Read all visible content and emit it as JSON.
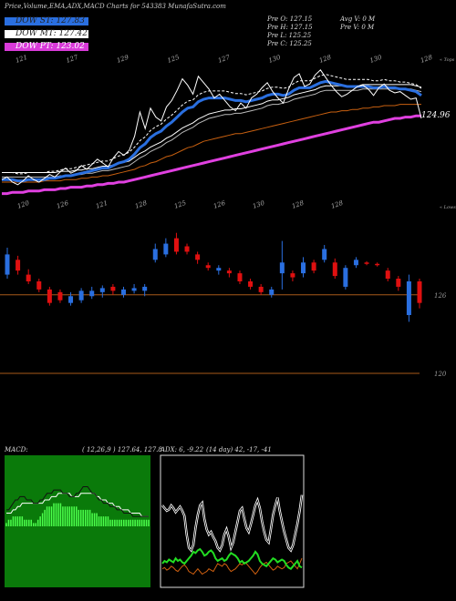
{
  "title": "Price,Volume,EMA,ADX,MACD Charts for 543383 MunafaSutra.com",
  "legend": [
    {
      "label": "DOW ST: 127.83",
      "color": "#2a6fe0",
      "text": "#222"
    },
    {
      "label": "DOW MT: 127.42",
      "color": "#ffffff",
      "text": "#222"
    },
    {
      "label": "DOW PT: 123.02",
      "color": "#d83ad8",
      "text": "#fff"
    }
  ],
  "info": {
    "pre_o": "Pre   O: 127.15",
    "pre_h": "Pre   H: 127.15",
    "pre_l": "Pre   L: 125.25",
    "pre_c": "Pre   C: 125.25",
    "avg_v": "Avg V: 0   M",
    "pre_v": "Pre   V: 0   M"
  },
  "colors": {
    "up": "#2a6fe0",
    "down": "#e01010",
    "macd_bg": "#0a7a0a",
    "pink": "#e040e0",
    "orange": "#c86010",
    "level": "#a85a1a"
  },
  "chart_data": [
    {
      "type": "line",
      "name": "price-ema",
      "top_labels": [
        "121",
        "127",
        "129",
        "125",
        "127",
        "130",
        "128",
        "130",
        "128"
      ],
      "bottom_labels": [
        "120",
        "126",
        "121",
        "128",
        "125",
        "126",
        "130",
        "128",
        "128"
      ],
      "side_top": "« Tops",
      "side_bottom": "« Lows",
      "last_value": "124.96",
      "close": [
        121.2,
        121.4,
        121.0,
        120.8,
        121.1,
        121.5,
        121.2,
        121.0,
        121.3,
        121.6,
        121.4,
        121.8,
        122.1,
        121.7,
        121.9,
        122.3,
        122.0,
        122.4,
        122.8,
        122.5,
        122.2,
        122.9,
        123.4,
        123.1,
        123.5,
        124.6,
        126.5,
        125.2,
        126.8,
        126.1,
        125.8,
        126.9,
        127.4,
        128.2,
        129.1,
        128.6,
        127.9,
        129.3,
        128.8,
        128.3,
        127.6,
        127.9,
        127.4,
        126.9,
        126.6,
        127.2,
        126.8,
        127.6,
        127.9,
        128.4,
        128.8,
        128.1,
        127.6,
        127.2,
        128.3,
        129.2,
        129.5,
        128.5,
        128.7,
        129.4,
        129.8,
        129.2,
        128.6,
        128.1,
        127.7,
        127.9,
        128.2,
        128.5,
        128.6,
        128.3,
        127.8,
        128.4,
        128.7,
        128.2,
        128.0,
        128.1,
        127.8,
        127.5,
        127.6,
        126.0
      ],
      "ema_fast": [
        121.2,
        121.2,
        121.2,
        121.1,
        121.1,
        121.2,
        121.2,
        121.2,
        121.2,
        121.3,
        121.3,
        121.4,
        121.5,
        121.5,
        121.6,
        121.7,
        121.8,
        121.9,
        122.0,
        122.1,
        122.1,
        122.3,
        122.5,
        122.6,
        122.8,
        123.2,
        123.7,
        124.0,
        124.5,
        124.8,
        125.0,
        125.4,
        125.7,
        126.1,
        126.5,
        126.8,
        126.9,
        127.3,
        127.5,
        127.6,
        127.6,
        127.6,
        127.6,
        127.5,
        127.4,
        127.4,
        127.3,
        127.4,
        127.5,
        127.6,
        127.8,
        127.9,
        127.9,
        127.8,
        127.9,
        128.2,
        128.4,
        128.4,
        128.4,
        128.6,
        128.8,
        128.9,
        128.8,
        128.7,
        128.6,
        128.5,
        128.5,
        128.5,
        128.5,
        128.5,
        128.4,
        128.4,
        128.5,
        128.4,
        128.4,
        128.3,
        128.3,
        128.2,
        128.1,
        127.8
      ],
      "ema_mid": [
        121.4,
        121.4,
        121.4,
        121.4,
        121.4,
        121.4,
        121.4,
        121.4,
        121.4,
        121.4,
        121.4,
        121.5,
        121.5,
        121.5,
        121.6,
        121.6,
        121.7,
        121.7,
        121.8,
        121.9,
        121.9,
        122.0,
        122.1,
        122.2,
        122.3,
        122.6,
        122.9,
        123.1,
        123.4,
        123.6,
        123.8,
        124.1,
        124.3,
        124.6,
        124.9,
        125.1,
        125.3,
        125.6,
        125.8,
        126.0,
        126.1,
        126.2,
        126.3,
        126.3,
        126.4,
        126.4,
        126.5,
        126.6,
        126.7,
        126.8,
        127.0,
        127.1,
        127.1,
        127.2,
        127.3,
        127.5,
        127.6,
        127.7,
        127.8,
        127.9,
        128.1,
        128.2,
        128.2,
        128.2,
        128.2,
        128.2,
        128.2,
        128.2,
        128.3,
        128.3,
        128.3,
        128.3,
        128.3,
        128.3,
        128.3,
        128.3,
        128.3,
        128.3,
        128.2,
        128.1
      ],
      "ema_slow": [
        121.0,
        121.0,
        121.0,
        121.0,
        121.0,
        121.0,
        121.0,
        121.0,
        121.1,
        121.1,
        121.1,
        121.1,
        121.2,
        121.2,
        121.2,
        121.3,
        121.3,
        121.4,
        121.4,
        121.5,
        121.5,
        121.6,
        121.7,
        121.8,
        121.9,
        122.0,
        122.2,
        122.3,
        122.5,
        122.6,
        122.8,
        123.0,
        123.1,
        123.3,
        123.5,
        123.7,
        123.8,
        124.0,
        124.2,
        124.3,
        124.4,
        124.5,
        124.6,
        124.7,
        124.8,
        124.8,
        124.9,
        125.0,
        125.1,
        125.2,
        125.3,
        125.4,
        125.5,
        125.6,
        125.7,
        125.8,
        125.9,
        126.0,
        126.1,
        126.2,
        126.3,
        126.4,
        126.5,
        126.5,
        126.6,
        126.6,
        126.7,
        126.7,
        126.8,
        126.8,
        126.9,
        126.9,
        127.0,
        127.0,
        127.0,
        127.1,
        127.1,
        127.1,
        127.1,
        127.1
      ],
      "ema_long": [
        120.1,
        120.1,
        120.2,
        120.2,
        120.2,
        120.3,
        120.3,
        120.3,
        120.4,
        120.4,
        120.4,
        120.5,
        120.5,
        120.6,
        120.6,
        120.6,
        120.7,
        120.7,
        120.8,
        120.8,
        120.9,
        120.9,
        121.0,
        121.0,
        121.1,
        121.2,
        121.3,
        121.4,
        121.5,
        121.6,
        121.7,
        121.8,
        121.9,
        122.0,
        122.1,
        122.2,
        122.3,
        122.4,
        122.5,
        122.6,
        122.7,
        122.8,
        122.9,
        123.0,
        123.1,
        123.2,
        123.3,
        123.4,
        123.5,
        123.6,
        123.7,
        123.8,
        123.9,
        124.0,
        124.1,
        124.2,
        124.3,
        124.4,
        124.5,
        124.6,
        124.7,
        124.8,
        124.9,
        125.0,
        125.1,
        125.2,
        125.3,
        125.4,
        125.5,
        125.6,
        125.7,
        125.7,
        125.8,
        125.9,
        126.0,
        126.0,
        126.1,
        126.1,
        126.2,
        126.2
      ],
      "ylim": [
        118.5,
        131.0
      ]
    },
    {
      "type": "bar",
      "name": "candles",
      "level_label": "126",
      "lower_label": "120",
      "candles": [
        {
          "o": 127.5,
          "c": 129.0,
          "h": 129.5,
          "l": 127.2
        },
        {
          "o": 128.6,
          "c": 127.8,
          "h": 128.9,
          "l": 127.5
        },
        {
          "o": 127.5,
          "c": 127.0,
          "h": 127.9,
          "l": 126.8
        },
        {
          "o": 127.0,
          "c": 126.4,
          "h": 127.2,
          "l": 126.2
        },
        {
          "o": 126.4,
          "c": 125.4,
          "h": 126.6,
          "l": 125.2
        },
        {
          "o": 126.2,
          "c": 125.6,
          "h": 126.4,
          "l": 125.4
        },
        {
          "o": 125.4,
          "c": 125.9,
          "h": 126.2,
          "l": 125.2
        },
        {
          "o": 125.6,
          "c": 126.3,
          "h": 126.5,
          "l": 125.4
        },
        {
          "o": 125.9,
          "c": 126.3,
          "h": 126.6,
          "l": 125.7
        },
        {
          "o": 126.2,
          "c": 126.5,
          "h": 126.7,
          "l": 125.8
        },
        {
          "o": 126.6,
          "c": 126.3,
          "h": 126.8,
          "l": 126.0
        },
        {
          "o": 126.0,
          "c": 126.4,
          "h": 126.6,
          "l": 125.8
        },
        {
          "o": 126.3,
          "c": 126.5,
          "h": 126.8,
          "l": 126.1
        },
        {
          "o": 126.3,
          "c": 126.6,
          "h": 126.8,
          "l": 125.9
        },
        {
          "o": 128.6,
          "c": 129.4,
          "h": 129.8,
          "l": 128.4
        },
        {
          "o": 129.0,
          "c": 129.8,
          "h": 130.2,
          "l": 128.8
        },
        {
          "o": 130.2,
          "c": 129.2,
          "h": 130.6,
          "l": 129.0
        },
        {
          "o": 129.6,
          "c": 129.2,
          "h": 129.8,
          "l": 129.0
        },
        {
          "o": 129.0,
          "c": 128.6,
          "h": 129.2,
          "l": 128.3
        },
        {
          "o": 128.2,
          "c": 128.0,
          "h": 128.4,
          "l": 127.8
        },
        {
          "o": 127.8,
          "c": 128.0,
          "h": 128.2,
          "l": 127.5
        },
        {
          "o": 127.8,
          "c": 127.6,
          "h": 128.0,
          "l": 127.3
        },
        {
          "o": 127.6,
          "c": 127.0,
          "h": 127.8,
          "l": 126.8
        },
        {
          "o": 127.0,
          "c": 126.6,
          "h": 127.2,
          "l": 126.4
        },
        {
          "o": 126.6,
          "c": 126.2,
          "h": 126.8,
          "l": 126.0
        },
        {
          "o": 126.0,
          "c": 126.4,
          "h": 126.6,
          "l": 125.8
        },
        {
          "o": 127.6,
          "c": 128.4,
          "h": 130.0,
          "l": 126.4
        },
        {
          "o": 127.6,
          "c": 127.3,
          "h": 127.8,
          "l": 127.0
        },
        {
          "o": 127.6,
          "c": 128.4,
          "h": 128.8,
          "l": 127.3
        },
        {
          "o": 128.4,
          "c": 127.8,
          "h": 128.6,
          "l": 127.6
        },
        {
          "o": 128.6,
          "c": 129.4,
          "h": 129.7,
          "l": 128.4
        },
        {
          "o": 128.4,
          "c": 127.4,
          "h": 128.7,
          "l": 127.2
        },
        {
          "o": 126.6,
          "c": 128.0,
          "h": 128.2,
          "l": 126.4
        },
        {
          "o": 128.2,
          "c": 128.6,
          "h": 128.8,
          "l": 128.0
        },
        {
          "o": 128.4,
          "c": 128.3,
          "h": 128.5,
          "l": 128.2
        },
        {
          "o": 128.3,
          "c": 128.2,
          "h": 128.4,
          "l": 128.1
        },
        {
          "o": 127.8,
          "c": 127.2,
          "h": 128.0,
          "l": 127.0
        },
        {
          "o": 127.2,
          "c": 126.6,
          "h": 127.4,
          "l": 126.3
        },
        {
          "o": 124.5,
          "c": 127.0,
          "h": 127.5,
          "l": 124.0
        },
        {
          "o": 127.0,
          "c": 125.4,
          "h": 127.2,
          "l": 125.0
        }
      ],
      "ylim": [
        119.5,
        132.0
      ]
    },
    {
      "type": "area",
      "name": "MACD",
      "label": "MACD:",
      "params": "( 12,26,9 ) 127.64, 127.8",
      "hist": [
        1,
        2,
        2,
        3,
        3,
        3,
        3,
        3,
        2,
        2,
        2,
        2,
        1,
        1,
        2,
        3,
        4,
        5,
        6,
        6,
        6,
        7,
        7,
        7,
        7,
        6,
        6,
        6,
        6,
        6,
        6,
        6,
        5,
        5,
        5,
        5,
        5,
        5,
        4,
        4,
        4,
        3,
        3,
        3,
        3,
        3,
        2,
        2,
        2,
        2,
        2,
        2,
        2,
        2,
        2,
        2,
        2,
        2,
        2,
        2,
        2,
        2,
        2,
        2
      ],
      "macd": [
        5,
        5,
        6,
        7,
        8,
        8,
        9,
        9,
        9,
        8,
        8,
        8,
        7,
        7,
        7,
        8,
        8,
        9,
        10,
        10,
        10,
        11,
        11,
        11,
        11,
        10,
        10,
        10,
        9,
        9,
        9,
        10,
        10,
        11,
        12,
        12,
        12,
        11,
        10,
        10,
        9,
        8,
        8,
        7,
        7,
        7,
        6,
        6,
        6,
        5,
        5,
        5,
        4,
        4,
        4,
        4,
        3,
        3,
        3,
        3,
        3,
        3,
        3,
        3
      ],
      "signal": [
        4,
        4,
        4,
        5,
        5,
        6,
        6,
        7,
        7,
        7,
        7,
        7,
        7,
        7,
        7,
        7,
        7,
        8,
        8,
        8,
        9,
        9,
        9,
        10,
        10,
        10,
        10,
        10,
        10,
        9,
        9,
        9,
        9,
        10,
        10,
        10,
        10,
        10,
        10,
        10,
        9,
        9,
        8,
        8,
        8,
        7,
        7,
        7,
        6,
        6,
        6,
        5,
        5,
        5,
        5,
        4,
        4,
        4,
        4,
        4,
        3,
        3,
        3,
        3
      ],
      "ylim": [
        0,
        40
      ]
    },
    {
      "type": "line",
      "name": "ADX",
      "label": "ADX: 6, -9.22",
      "params": "(14 day) 42, -17, -41",
      "adx": [
        62,
        60,
        58,
        59,
        62,
        60,
        57,
        59,
        61,
        58,
        54,
        40,
        30,
        28,
        32,
        45,
        55,
        62,
        64,
        52,
        44,
        40,
        42,
        38,
        35,
        30,
        28,
        32,
        40,
        44,
        38,
        30,
        34,
        42,
        50,
        58,
        60,
        52,
        45,
        42,
        48,
        55,
        62,
        66,
        60,
        50,
        42,
        36,
        34,
        44,
        55,
        62,
        68,
        58,
        50,
        42,
        36,
        30,
        28,
        32,
        40,
        48,
        58,
        70
      ],
      "di_plus": [
        18,
        20,
        19,
        21,
        20,
        19,
        22,
        20,
        21,
        19,
        18,
        20,
        22,
        24,
        27,
        26,
        28,
        29,
        27,
        24,
        25,
        27,
        28,
        26,
        22,
        20,
        21,
        22,
        20,
        21,
        24,
        26,
        25,
        24,
        22,
        19,
        20,
        18,
        19,
        20,
        22,
        24,
        27,
        25,
        20,
        18,
        17,
        16,
        18,
        20,
        22,
        21,
        19,
        20,
        21,
        20,
        17,
        15,
        14,
        16,
        18,
        20,
        16,
        15
      ],
      "di_minus": [
        14,
        15,
        13,
        14,
        16,
        15,
        13,
        12,
        14,
        16,
        17,
        15,
        12,
        11,
        10,
        12,
        14,
        12,
        10,
        11,
        12,
        14,
        13,
        12,
        15,
        18,
        17,
        16,
        18,
        17,
        14,
        12,
        13,
        14,
        16,
        18,
        17,
        19,
        18,
        16,
        14,
        12,
        10,
        12,
        15,
        17,
        18,
        19,
        17,
        15,
        13,
        14,
        16,
        15,
        14,
        15,
        18,
        19,
        20,
        18,
        16,
        14,
        18,
        22
      ],
      "ylim": [
        0,
        100
      ]
    }
  ]
}
